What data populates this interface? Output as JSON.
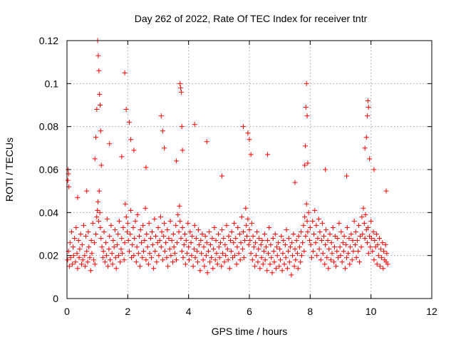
{
  "chart_data": {
    "type": "scatter",
    "title": "Day 262 of 2022, Rate Of TEC Index for receiver tntr",
    "xlabel": "GPS time / hours",
    "ylabel": "ROTI / TECUs",
    "xlim": [
      0,
      12
    ],
    "ylim": [
      0,
      0.12
    ],
    "grid": true,
    "legend": "none",
    "marker": "plus",
    "color": "#ff0000",
    "x_ticks": [
      {
        "value": 0,
        "label": "0"
      },
      {
        "value": 2,
        "label": "2"
      },
      {
        "value": 4,
        "label": "4"
      },
      {
        "value": 6,
        "label": "6"
      },
      {
        "value": 8,
        "label": "8"
      },
      {
        "value": 10,
        "label": "10"
      },
      {
        "value": 12,
        "label": "12"
      }
    ],
    "y_ticks": [
      {
        "value": 0,
        "label": "0"
      },
      {
        "value": 0.02,
        "label": "0.02"
      },
      {
        "value": 0.04,
        "label": "0.04"
      },
      {
        "value": 0.06,
        "label": "0.06"
      },
      {
        "value": 0.08,
        "label": "0.08"
      },
      {
        "value": 0.1,
        "label": "0.1"
      },
      {
        "value": 0.12,
        "label": "0.12"
      }
    ],
    "x": [
      0.02,
      0.05,
      0.08,
      0.1,
      0.12,
      0.15,
      0.18,
      0.2,
      0.22,
      0.25,
      0.28,
      0.3,
      0.33,
      0.35,
      0.38,
      0.4,
      0.42,
      0.45,
      0.48,
      0.5,
      0.52,
      0.55,
      0.58,
      0.6,
      0.62,
      0.65,
      0.68,
      0.7,
      0.72,
      0.75,
      0.78,
      0.8,
      0.82,
      0.85,
      0.88,
      0.9,
      0.92,
      0.95,
      0.98,
      1.0,
      1.02,
      1.04,
      1.06,
      1.08,
      1.1,
      1.12,
      1.15,
      1.18,
      1.2,
      1.22,
      1.25,
      1.28,
      1.3,
      1.32,
      1.35,
      1.38,
      1.4,
      1.42,
      1.45,
      1.48,
      1.5,
      1.52,
      1.55,
      1.58,
      1.6,
      1.62,
      1.65,
      1.68,
      1.7,
      1.72,
      1.75,
      1.78,
      1.8,
      1.82,
      1.85,
      1.88,
      1.9,
      1.92,
      1.95,
      1.98,
      2.0,
      2.02,
      2.05,
      2.08,
      2.1,
      2.12,
      2.15,
      2.18,
      2.2,
      2.22,
      2.25,
      2.28,
      2.3,
      2.32,
      2.35,
      2.38,
      2.4,
      2.42,
      2.45,
      2.48,
      2.5,
      2.52,
      2.55,
      2.58,
      2.6,
      2.62,
      2.65,
      2.68,
      2.7,
      2.72,
      2.75,
      2.78,
      2.8,
      2.82,
      2.85,
      2.88,
      2.9,
      2.92,
      2.95,
      2.98,
      3.0,
      3.02,
      3.05,
      3.08,
      3.1,
      3.12,
      3.15,
      3.18,
      3.2,
      3.22,
      3.25,
      3.28,
      3.3,
      3.32,
      3.35,
      3.38,
      3.4,
      3.42,
      3.45,
      3.48,
      3.5,
      3.52,
      3.55,
      3.58,
      3.6,
      3.62,
      3.65,
      3.68,
      3.7,
      3.72,
      3.75,
      3.78,
      3.8,
      3.82,
      3.85,
      3.88,
      3.9,
      3.92,
      3.95,
      3.98,
      4.0,
      4.02,
      4.05,
      4.08,
      4.1,
      4.12,
      4.15,
      4.18,
      4.2,
      4.22,
      4.25,
      4.28,
      4.3,
      4.32,
      4.35,
      4.38,
      4.4,
      4.42,
      4.45,
      4.48,
      4.5,
      4.52,
      4.55,
      4.58,
      4.6,
      4.62,
      4.65,
      4.68,
      4.7,
      4.72,
      4.75,
      4.78,
      4.8,
      4.82,
      4.85,
      4.88,
      4.9,
      4.92,
      4.95,
      4.98,
      5.0,
      5.02,
      5.05,
      5.08,
      5.1,
      5.12,
      5.15,
      5.18,
      5.2,
      5.22,
      5.25,
      5.28,
      5.3,
      5.32,
      5.35,
      5.38,
      5.4,
      5.42,
      5.45,
      5.48,
      5.5,
      5.52,
      5.55,
      5.58,
      5.6,
      5.62,
      5.65,
      5.68,
      5.7,
      5.72,
      5.75,
      5.78,
      5.8,
      5.82,
      5.85,
      5.88,
      5.9,
      5.92,
      5.95,
      5.98,
      6.0,
      6.02,
      6.05,
      6.08,
      6.1,
      6.12,
      6.15,
      6.18,
      6.2,
      6.22,
      6.25,
      6.28,
      6.3,
      6.32,
      6.35,
      6.38,
      6.4,
      6.42,
      6.45,
      6.48,
      6.5,
      6.52,
      6.55,
      6.58,
      6.6,
      6.62,
      6.65,
      6.68,
      6.7,
      6.72,
      6.75,
      6.78,
      6.8,
      6.82,
      6.85,
      6.88,
      6.9,
      6.92,
      6.95,
      6.98,
      7.0,
      7.02,
      7.05,
      7.08,
      7.1,
      7.12,
      7.15,
      7.18,
      7.2,
      7.22,
      7.25,
      7.28,
      7.3,
      7.32,
      7.35,
      7.38,
      7.4,
      7.42,
      7.45,
      7.48,
      7.5,
      7.52,
      7.55,
      7.58,
      7.6,
      7.62,
      7.65,
      7.68,
      7.7,
      7.72,
      7.75,
      7.78,
      7.8,
      7.82,
      7.85,
      7.88,
      7.9,
      7.92,
      7.95,
      7.98,
      8.0,
      8.02,
      8.05,
      8.08,
      8.1,
      8.12,
      8.15,
      8.18,
      8.2,
      8.22,
      8.25,
      8.28,
      8.3,
      8.32,
      8.35,
      8.38,
      8.4,
      8.42,
      8.45,
      8.48,
      8.5,
      8.52,
      8.55,
      8.58,
      8.6,
      8.62,
      8.65,
      8.68,
      8.7,
      8.72,
      8.75,
      8.78,
      8.8,
      8.82,
      8.85,
      8.88,
      8.9,
      8.92,
      8.95,
      8.98,
      9.0,
      9.02,
      9.05,
      9.08,
      9.1,
      9.12,
      9.15,
      9.18,
      9.2,
      9.22,
      9.25,
      9.28,
      9.3,
      9.32,
      9.35,
      9.38,
      9.4,
      9.42,
      9.45,
      9.48,
      9.5,
      9.52,
      9.55,
      9.58,
      9.6,
      9.62,
      9.65,
      9.68,
      9.7,
      9.72,
      9.75,
      9.78,
      9.8,
      9.82,
      9.85,
      9.88,
      9.9,
      9.92,
      9.95,
      9.98,
      10.0,
      10.02,
      10.05,
      10.08,
      10.1,
      10.12,
      10.15,
      10.18,
      10.2,
      10.22,
      10.25,
      10.28,
      10.3,
      10.32,
      10.35,
      10.38,
      10.4,
      10.42,
      10.45,
      10.48,
      10.5,
      10.52,
      10.55,
      0.03,
      0.04,
      0.05,
      0.06,
      0.35,
      0.65,
      0.92,
      0.95,
      0.98,
      1.01,
      1.03,
      1.05,
      1.07,
      1.09,
      1.11,
      1.13,
      1.4,
      1.8,
      1.9,
      1.95,
      2.05,
      2.1,
      2.2,
      2.6,
      3.1,
      3.15,
      3.2,
      3.6,
      3.72,
      3.74,
      3.76,
      3.78,
      3.8,
      4.2,
      4.6,
      5.1,
      5.8,
      5.95,
      6.0,
      6.05,
      6.6,
      7.5,
      7.82,
      7.84,
      7.86,
      7.88,
      7.9,
      7.92,
      8.5,
      9.2,
      9.8,
      9.85,
      9.88,
      9.9,
      9.92,
      9.95,
      10.1,
      10.5
    ],
    "y": [
      0.018,
      0.022,
      0.015,
      0.026,
      0.019,
      0.031,
      0.016,
      0.024,
      0.02,
      0.028,
      0.017,
      0.033,
      0.021,
      0.014,
      0.027,
      0.019,
      0.023,
      0.03,
      0.016,
      0.025,
      0.018,
      0.034,
      0.02,
      0.015,
      0.029,
      0.022,
      0.017,
      0.031,
      0.024,
      0.019,
      0.013,
      0.027,
      0.021,
      0.035,
      0.018,
      0.026,
      0.016,
      0.03,
      0.038,
      0.041,
      0.045,
      0.036,
      0.05,
      0.04,
      0.033,
      0.028,
      0.024,
      0.019,
      0.022,
      0.031,
      0.017,
      0.026,
      0.02,
      0.037,
      0.015,
      0.023,
      0.029,
      0.018,
      0.034,
      0.021,
      0.016,
      0.027,
      0.024,
      0.032,
      0.019,
      0.014,
      0.025,
      0.03,
      0.02,
      0.036,
      0.017,
      0.023,
      0.028,
      0.021,
      0.033,
      0.018,
      0.026,
      0.044,
      0.038,
      0.031,
      0.035,
      0.027,
      0.022,
      0.03,
      0.041,
      0.019,
      0.025,
      0.033,
      0.02,
      0.028,
      0.036,
      0.017,
      0.024,
      0.039,
      0.021,
      0.029,
      0.015,
      0.032,
      0.026,
      0.019,
      0.034,
      0.022,
      0.027,
      0.042,
      0.018,
      0.03,
      0.024,
      0.016,
      0.035,
      0.021,
      0.028,
      0.019,
      0.031,
      0.025,
      0.014,
      0.037,
      0.022,
      0.029,
      0.017,
      0.026,
      0.033,
      0.02,
      0.027,
      0.038,
      0.024,
      0.031,
      0.018,
      0.029,
      0.035,
      0.022,
      0.026,
      0.019,
      0.032,
      0.015,
      0.028,
      0.023,
      0.036,
      0.02,
      0.027,
      0.017,
      0.03,
      0.024,
      0.021,
      0.034,
      0.018,
      0.026,
      0.039,
      0.031,
      0.043,
      0.036,
      0.028,
      0.022,
      0.033,
      0.019,
      0.025,
      0.03,
      0.016,
      0.027,
      0.021,
      0.035,
      0.024,
      0.018,
      0.031,
      0.026,
      0.02,
      0.029,
      0.015,
      0.023,
      0.034,
      0.019,
      0.028,
      0.022,
      0.017,
      0.032,
      0.025,
      0.013,
      0.027,
      0.021,
      0.03,
      0.018,
      0.024,
      0.015,
      0.029,
      0.02,
      0.026,
      0.012,
      0.022,
      0.031,
      0.017,
      0.025,
      0.019,
      0.028,
      0.014,
      0.023,
      0.033,
      0.018,
      0.027,
      0.021,
      0.016,
      0.03,
      0.024,
      0.019,
      0.026,
      0.015,
      0.032,
      0.021,
      0.028,
      0.017,
      0.025,
      0.02,
      0.034,
      0.023,
      0.018,
      0.029,
      0.014,
      0.027,
      0.022,
      0.031,
      0.019,
      0.026,
      0.035,
      0.02,
      0.028,
      0.016,
      0.024,
      0.033,
      0.021,
      0.03,
      0.018,
      0.026,
      0.038,
      0.023,
      0.031,
      0.019,
      0.027,
      0.042,
      0.034,
      0.029,
      0.037,
      0.025,
      0.032,
      0.027,
      0.021,
      0.035,
      0.018,
      0.029,
      0.024,
      0.015,
      0.026,
      0.02,
      0.031,
      0.017,
      0.023,
      0.028,
      0.014,
      0.025,
      0.019,
      0.027,
      0.016,
      0.022,
      0.03,
      0.018,
      0.024,
      0.013,
      0.027,
      0.021,
      0.033,
      0.016,
      0.025,
      0.019,
      0.012,
      0.028,
      0.022,
      0.017,
      0.03,
      0.014,
      0.024,
      0.02,
      0.026,
      0.015,
      0.023,
      0.018,
      0.029,
      0.013,
      0.021,
      0.027,
      0.016,
      0.025,
      0.019,
      0.032,
      0.014,
      0.022,
      0.028,
      0.017,
      0.024,
      0.011,
      0.026,
      0.02,
      0.03,
      0.015,
      0.023,
      0.018,
      0.027,
      0.021,
      0.014,
      0.029,
      0.024,
      0.017,
      0.031,
      0.02,
      0.026,
      0.034,
      0.022,
      0.038,
      0.029,
      0.044,
      0.036,
      0.031,
      0.04,
      0.027,
      0.033,
      0.025,
      0.019,
      0.036,
      0.022,
      0.03,
      0.041,
      0.026,
      0.034,
      0.02,
      0.028,
      0.037,
      0.023,
      0.031,
      0.018,
      0.027,
      0.035,
      0.021,
      0.029,
      0.016,
      0.025,
      0.032,
      0.019,
      0.027,
      0.014,
      0.023,
      0.03,
      0.018,
      0.026,
      0.021,
      0.033,
      0.017,
      0.024,
      0.029,
      0.015,
      0.022,
      0.028,
      0.019,
      0.035,
      0.024,
      0.02,
      0.031,
      0.017,
      0.026,
      0.022,
      0.029,
      0.014,
      0.025,
      0.019,
      0.033,
      0.021,
      0.028,
      0.016,
      0.024,
      0.03,
      0.018,
      0.027,
      0.022,
      0.036,
      0.025,
      0.031,
      0.019,
      0.027,
      0.022,
      0.034,
      0.017,
      0.029,
      0.024,
      0.038,
      0.03,
      0.042,
      0.035,
      0.028,
      0.039,
      0.032,
      0.026,
      0.033,
      0.021,
      0.029,
      0.024,
      0.036,
      0.028,
      0.022,
      0.031,
      0.018,
      0.027,
      0.024,
      0.03,
      0.016,
      0.025,
      0.02,
      0.028,
      0.015,
      0.023,
      0.019,
      0.026,
      0.014,
      0.022,
      0.018,
      0.025,
      0.017,
      0.021,
      0.016,
      0.055,
      0.06,
      0.058,
      0.052,
      0.047,
      0.05,
      0.065,
      0.075,
      0.088,
      0.12,
      0.113,
      0.106,
      0.095,
      0.09,
      0.078,
      0.062,
      0.072,
      0.066,
      0.105,
      0.088,
      0.082,
      0.074,
      0.069,
      0.061,
      0.085,
      0.078,
      0.07,
      0.064,
      0.1,
      0.098,
      0.096,
      0.08,
      0.069,
      0.081,
      0.073,
      0.057,
      0.08,
      0.077,
      0.074,
      0.067,
      0.067,
      0.054,
      0.062,
      0.071,
      0.089,
      0.1,
      0.085,
      0.063,
      0.06,
      0.057,
      0.07,
      0.075,
      0.085,
      0.092,
      0.089,
      0.065,
      0.06,
      0.05
    ]
  }
}
